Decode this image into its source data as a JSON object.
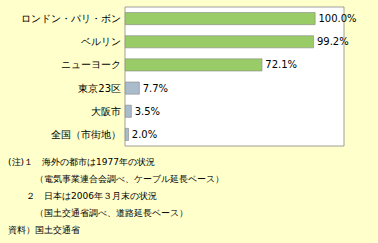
{
  "chart_data": {
    "type": "bar",
    "orientation": "horizontal",
    "categories": [
      "ロンドン・パリ・ボン",
      "ベルリン",
      "ニューヨーク",
      "東京23区",
      "大阪市",
      "全国（市街地）"
    ],
    "values": [
      100.0,
      99.2,
      72.1,
      7.7,
      3.5,
      2.0
    ],
    "value_labels": [
      "100.0%",
      "99.2%",
      "72.1%",
      "7.7%",
      "3.5%",
      "2.0%"
    ],
    "data_labels": true,
    "colors": [
      "#99cc66",
      "#99cc66",
      "#99cc66",
      "#aabbcc",
      "#aabbcc",
      "#aabbcc"
    ],
    "xlim": [
      0,
      115
    ],
    "tick_labels": "y",
    "grid": false,
    "annotations": [
      "(注)１　海外の都市は1977年の状況",
      "　　　（電気事業連合会調べ、ケーブル延長ベース）",
      "　　２　日本は2006年３月末の状況",
      "　　　（国土交通省調べ、道路延長ベース）",
      "資料）国土交通省"
    ]
  }
}
